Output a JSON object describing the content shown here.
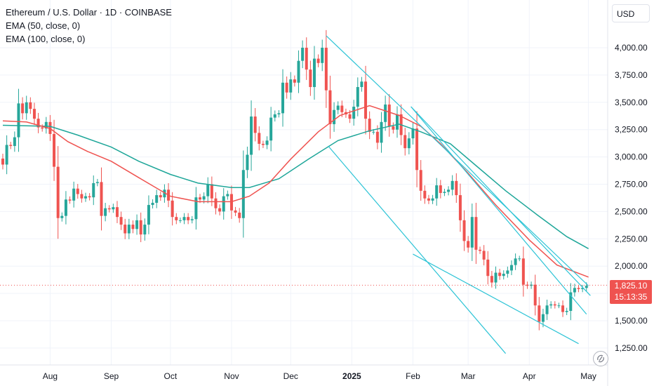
{
  "legend": {
    "title": "Ethereum / U.S. Dollar · 1D · COINBASE",
    "ema50": "EMA (50, close, 0)",
    "ema100": "EMA (100, close, 0)"
  },
  "currency_button": "USD",
  "last_price": {
    "value": "1,825.10",
    "countdown": "15:13:35"
  },
  "colors": {
    "up": "#26a69a",
    "down": "#ef5350",
    "ema50": "#ef5350",
    "ema100": "#1ea699",
    "trendline": "#2ec4d6",
    "grid": "#f0f3fa"
  },
  "chart_data": {
    "type": "candlestick",
    "symbol": "ETHUSD",
    "timeframe": "1D",
    "exchange": "COINBASE",
    "x_ticks": [
      "Aug",
      "Sep",
      "Oct",
      "Nov",
      "Dec",
      "2025",
      "Feb",
      "Mar",
      "Apr",
      "May"
    ],
    "y_ticks": [
      "4,000.00",
      "3,750.00",
      "3,500.00",
      "3,250.00",
      "3,000.00",
      "2,750.00",
      "2,500.00",
      "2,250.00",
      "2,000.00",
      "1,750.00",
      "1,500.00",
      "1,250.00"
    ],
    "ylim": [
      1100,
      4200
    ],
    "xlim": [
      "2024-07-08",
      "2025-05-03"
    ],
    "last_price": 1825.1,
    "candles": [
      [
        "2024-07-08",
        2930,
        2985
      ],
      [
        "2024-07-10",
        3110,
        3120
      ],
      [
        "2024-07-12",
        3100,
        3230
      ],
      [
        "2024-07-14",
        3180,
        3360
      ],
      [
        "2024-07-16",
        3490,
        3440
      ],
      [
        "2024-07-18",
        3400,
        3500
      ],
      [
        "2024-07-20",
        3500,
        3530
      ],
      [
        "2024-07-22",
        3440,
        3480
      ],
      [
        "2024-07-24",
        3350,
        3180
      ],
      [
        "2024-07-26",
        3270,
        3260
      ],
      [
        "2024-07-28",
        3260,
        3280
      ],
      [
        "2024-07-30",
        3320,
        3240
      ],
      [
        "2024-08-01",
        3210,
        2990
      ],
      [
        "2024-08-03",
        2910,
        2690
      ],
      [
        "2024-08-05",
        2440,
        2420
      ],
      [
        "2024-08-07",
        2460,
        2340
      ],
      [
        "2024-08-09",
        2610,
        2550
      ],
      [
        "2024-08-11",
        2600,
        2580
      ],
      [
        "2024-08-13",
        2710,
        2650
      ],
      [
        "2024-08-15",
        2660,
        2570
      ],
      [
        "2024-08-17",
        2620,
        2610
      ],
      [
        "2024-08-19",
        2640,
        2570
      ],
      [
        "2024-08-21",
        2630,
        2600
      ],
      [
        "2024-08-23",
        2760,
        2780
      ],
      [
        "2024-08-25",
        2770,
        2750
      ],
      [
        "2024-08-27",
        2460,
        2530
      ],
      [
        "2024-08-29",
        2530,
        2570
      ],
      [
        "2024-08-31",
        2520,
        2510
      ],
      [
        "2024-09-02",
        2540,
        2500
      ],
      [
        "2024-09-04",
        2450,
        2380
      ],
      [
        "2024-09-06",
        2380,
        2330
      ],
      [
        "2024-09-08",
        2300,
        2290
      ],
      [
        "2024-09-10",
        2380,
        2360
      ],
      [
        "2024-09-12",
        2340,
        2320
      ],
      [
        "2024-09-14",
        2420,
        2390
      ],
      [
        "2024-09-16",
        2290,
        2390
      ],
      [
        "2024-09-18",
        2380,
        2490
      ],
      [
        "2024-09-20",
        2560,
        2590
      ],
      [
        "2024-09-22",
        2580,
        2590
      ],
      [
        "2024-09-24",
        2650,
        2610
      ],
      [
        "2024-09-26",
        2630,
        2640
      ],
      [
        "2024-09-28",
        2700,
        2650
      ],
      [
        "2024-09-30",
        2600,
        2610
      ],
      [
        "2024-10-02",
        2450,
        2480
      ],
      [
        "2024-10-04",
        2420,
        2400
      ],
      [
        "2024-10-06",
        2420,
        2440
      ],
      [
        "2024-10-08",
        2450,
        2440
      ],
      [
        "2024-10-10",
        2420,
        2390
      ],
      [
        "2024-10-12",
        2430,
        2410
      ],
      [
        "2024-10-14",
        2630,
        2610
      ],
      [
        "2024-10-16",
        2610,
        2640
      ],
      [
        "2024-10-18",
        2640,
        2680
      ],
      [
        "2024-10-20",
        2750,
        2640
      ],
      [
        "2024-10-22",
        2620,
        2560
      ],
      [
        "2024-10-24",
        2530,
        2480
      ],
      [
        "2024-10-26",
        2500,
        2480
      ],
      [
        "2024-10-28",
        2640,
        2640
      ],
      [
        "2024-10-30",
        2660,
        2600
      ],
      [
        "2024-11-01",
        2510,
        2470
      ],
      [
        "2024-11-03",
        2490,
        2400
      ],
      [
        "2024-11-05",
        2440,
        2560
      ],
      [
        "2024-11-07",
        2880,
        2830
      ],
      [
        "2024-11-09",
        3020,
        3040
      ],
      [
        "2024-11-11",
        3370,
        3310
      ],
      [
        "2024-11-13",
        3220,
        3150
      ],
      [
        "2024-11-15",
        3120,
        3090
      ],
      [
        "2024-11-17",
        3110,
        3130
      ],
      [
        "2024-11-19",
        3150,
        3040
      ],
      [
        "2024-11-21",
        3360,
        3310
      ],
      [
        "2024-11-23",
        3390,
        3310
      ],
      [
        "2024-11-25",
        3400,
        3380
      ],
      [
        "2024-11-27",
        3680,
        3710
      ],
      [
        "2024-11-29",
        3590,
        3620
      ],
      [
        "2024-12-01",
        3710,
        3650
      ],
      [
        "2024-12-03",
        3680,
        3790
      ],
      [
        "2024-12-05",
        3880,
        3840
      ],
      [
        "2024-12-07",
        4000,
        3950
      ],
      [
        "2024-12-09",
        3800,
        3760
      ],
      [
        "2024-12-11",
        3640,
        3810
      ],
      [
        "2024-12-13",
        3900,
        3870
      ],
      [
        "2024-12-15",
        3860,
        3930
      ],
      [
        "2024-12-17",
        4000,
        4060
      ],
      [
        "2024-12-19",
        3610,
        3510
      ],
      [
        "2024-12-21",
        3300,
        3350
      ],
      [
        "2024-12-23",
        3430,
        3480
      ],
      [
        "2024-12-25",
        3470,
        3460
      ],
      [
        "2024-12-27",
        3410,
        3380
      ],
      [
        "2024-12-29",
        3390,
        3330
      ],
      [
        "2024-12-31",
        3350,
        3460
      ],
      [
        "2025-01-02",
        3460,
        3450
      ],
      [
        "2025-01-04",
        3640,
        3620
      ],
      [
        "2025-01-06",
        3690,
        3650
      ],
      [
        "2025-01-08",
        3350,
        3300
      ],
      [
        "2025-01-10",
        3230,
        3270
      ],
      [
        "2025-01-12",
        3230,
        3210
      ],
      [
        "2025-01-14",
        3130,
        3220
      ],
      [
        "2025-01-16",
        3320,
        3310
      ],
      [
        "2025-01-18",
        3480,
        3380
      ],
      [
        "2025-01-20",
        3280,
        3320
      ],
      [
        "2025-01-22",
        3250,
        3310
      ],
      [
        "2025-01-24",
        3390,
        3340
      ],
      [
        "2025-01-26",
        3200,
        3310
      ],
      [
        "2025-01-28",
        3080,
        3120
      ],
      [
        "2025-01-30",
        3170,
        3280
      ],
      [
        "2025-02-01",
        3260,
        3250
      ],
      [
        "2025-02-03",
        2880,
        2870
      ],
      [
        "2025-02-05",
        2690,
        2710
      ],
      [
        "2025-02-07",
        2620,
        2580
      ],
      [
        "2025-02-09",
        2600,
        2640
      ],
      [
        "2025-02-11",
        2620,
        2580
      ],
      [
        "2025-02-13",
        2740,
        2710
      ],
      [
        "2025-02-15",
        2670,
        2690
      ],
      [
        "2025-02-17",
        2680,
        2740
      ],
      [
        "2025-02-19",
        2700,
        2720
      ],
      [
        "2025-02-21",
        2780,
        2760
      ],
      [
        "2025-02-23",
        2650,
        2660
      ],
      [
        "2025-02-25",
        2420,
        2510
      ],
      [
        "2025-02-27",
        2230,
        2310
      ],
      [
        "2025-03-01",
        2170,
        2220
      ],
      [
        "2025-03-03",
        2450,
        2510
      ],
      [
        "2025-03-05",
        2150,
        2200
      ],
      [
        "2025-03-07",
        2140,
        2030
      ],
      [
        "2025-03-09",
        2060,
        2020
      ],
      [
        "2025-03-11",
        1910,
        1880
      ],
      [
        "2025-03-13",
        1850,
        1880
      ],
      [
        "2025-03-15",
        1940,
        1920
      ],
      [
        "2025-03-17",
        1910,
        1930
      ],
      [
        "2025-03-19",
        1930,
        1970
      ],
      [
        "2025-03-21",
        1960,
        1990
      ],
      [
        "2025-03-23",
        2010,
        2080
      ],
      [
        "2025-03-25",
        2070,
        2050
      ],
      [
        "2025-03-27",
        2070,
        2000
      ],
      [
        "2025-03-29",
        1830,
        1810
      ],
      [
        "2025-03-31",
        1820,
        1860
      ],
      [
        "2025-04-02",
        1830,
        1790
      ],
      [
        "2025-04-04",
        1640,
        1580
      ],
      [
        "2025-04-06",
        1490,
        1450
      ],
      [
        "2025-04-08",
        1560,
        1520
      ],
      [
        "2025-04-10",
        1640,
        1580
      ],
      [
        "2025-04-12",
        1650,
        1610
      ],
      [
        "2025-04-14",
        1640,
        1620
      ],
      [
        "2025-04-16",
        1640,
        1610
      ],
      [
        "2025-04-18",
        1580,
        1600
      ],
      [
        "2025-04-20",
        1590,
        1620
      ],
      [
        "2025-04-22",
        1760,
        1770
      ],
      [
        "2025-04-24",
        1800,
        1780
      ],
      [
        "2025-04-26",
        1790,
        1820
      ],
      [
        "2025-04-28",
        1800,
        1820
      ],
      [
        "2025-04-30",
        1820,
        1825
      ]
    ],
    "ema50": [
      [
        "2024-07-08",
        3330
      ],
      [
        "2024-07-20",
        3320
      ],
      [
        "2024-08-01",
        3260
      ],
      [
        "2024-08-10",
        3140
      ],
      [
        "2024-08-20",
        3050
      ],
      [
        "2024-09-01",
        2960
      ],
      [
        "2024-09-15",
        2810
      ],
      [
        "2024-10-01",
        2640
      ],
      [
        "2024-10-15",
        2590
      ],
      [
        "2024-11-01",
        2590
      ],
      [
        "2024-11-10",
        2640
      ],
      [
        "2024-11-20",
        2760
      ],
      [
        "2024-12-01",
        2980
      ],
      [
        "2024-12-15",
        3230
      ],
      [
        "2024-12-26",
        3380
      ],
      [
        "2025-01-10",
        3470
      ],
      [
        "2025-01-25",
        3380
      ],
      [
        "2025-02-05",
        3280
      ],
      [
        "2025-02-15",
        3120
      ],
      [
        "2025-03-01",
        2850
      ],
      [
        "2025-03-15",
        2560
      ],
      [
        "2025-04-01",
        2240
      ],
      [
        "2025-04-15",
        2010
      ],
      [
        "2025-05-01",
        1900
      ]
    ],
    "ema100": [
      [
        "2024-07-08",
        3290
      ],
      [
        "2024-08-01",
        3280
      ],
      [
        "2024-08-15",
        3200
      ],
      [
        "2024-09-01",
        3090
      ],
      [
        "2024-09-15",
        2960
      ],
      [
        "2024-10-01",
        2840
      ],
      [
        "2024-10-15",
        2760
      ],
      [
        "2024-11-01",
        2720
      ],
      [
        "2024-11-10",
        2720
      ],
      [
        "2024-11-25",
        2800
      ],
      [
        "2024-12-10",
        2980
      ],
      [
        "2024-12-25",
        3150
      ],
      [
        "2025-01-10",
        3240
      ],
      [
        "2025-01-25",
        3300
      ],
      [
        "2025-02-05",
        3230
      ],
      [
        "2025-02-20",
        3120
      ],
      [
        "2025-03-05",
        2920
      ],
      [
        "2025-03-20",
        2690
      ],
      [
        "2025-04-05",
        2470
      ],
      [
        "2025-04-20",
        2270
      ],
      [
        "2025-05-01",
        2160
      ]
    ],
    "trendlines": [
      [
        [
          "2024-12-19",
          4110
        ],
        [
          "2025-05-01",
          1820
        ]
      ],
      [
        [
          "2024-12-20",
          3100
        ],
        [
          "2025-03-20",
          1200
        ]
      ],
      [
        [
          "2025-01-31",
          3460
        ],
        [
          "2025-04-30",
          1560
        ]
      ],
      [
        [
          "2025-01-31",
          3460
        ],
        [
          "2025-05-02",
          1730
        ]
      ],
      [
        [
          "2025-02-01",
          2110
        ],
        [
          "2025-04-26",
          1290
        ]
      ]
    ]
  }
}
